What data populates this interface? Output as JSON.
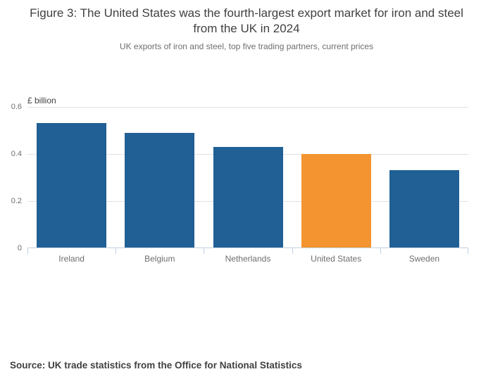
{
  "header": {
    "title": "Figure 3: The United States was the fourth-largest export market for iron and steel from the UK in 2024",
    "subtitle": "UK exports of iron and steel, top five trading partners, current prices"
  },
  "chart_data": {
    "type": "bar",
    "title": "Figure 3: The United States was the fourth-largest export market for iron and steel from the UK in 2024",
    "subtitle": "UK exports of iron and steel, top five trading partners, current prices",
    "unit_label": "£ billion",
    "categories": [
      "Ireland",
      "Belgium",
      "Netherlands",
      "United States",
      "Sweden"
    ],
    "values": [
      0.53,
      0.49,
      0.43,
      0.4,
      0.33
    ],
    "highlight_index": 3,
    "highlight_category": "United States",
    "xlabel": "",
    "ylabel": "£ billion",
    "ylim": [
      0,
      0.6
    ],
    "yticks": [
      0,
      0.2,
      0.4,
      0.6
    ],
    "ytick_labels": [
      "0",
      "0.2",
      "0.4",
      "0.6"
    ],
    "grid": true,
    "legend": "none",
    "bar_color": "#206095",
    "highlight_color": "#f39431",
    "gridline_color": "#e2e2e3",
    "axis_color": "#c3d1de"
  },
  "footer": {
    "source": "Source: UK trade statistics from the Office for National Statistics"
  }
}
